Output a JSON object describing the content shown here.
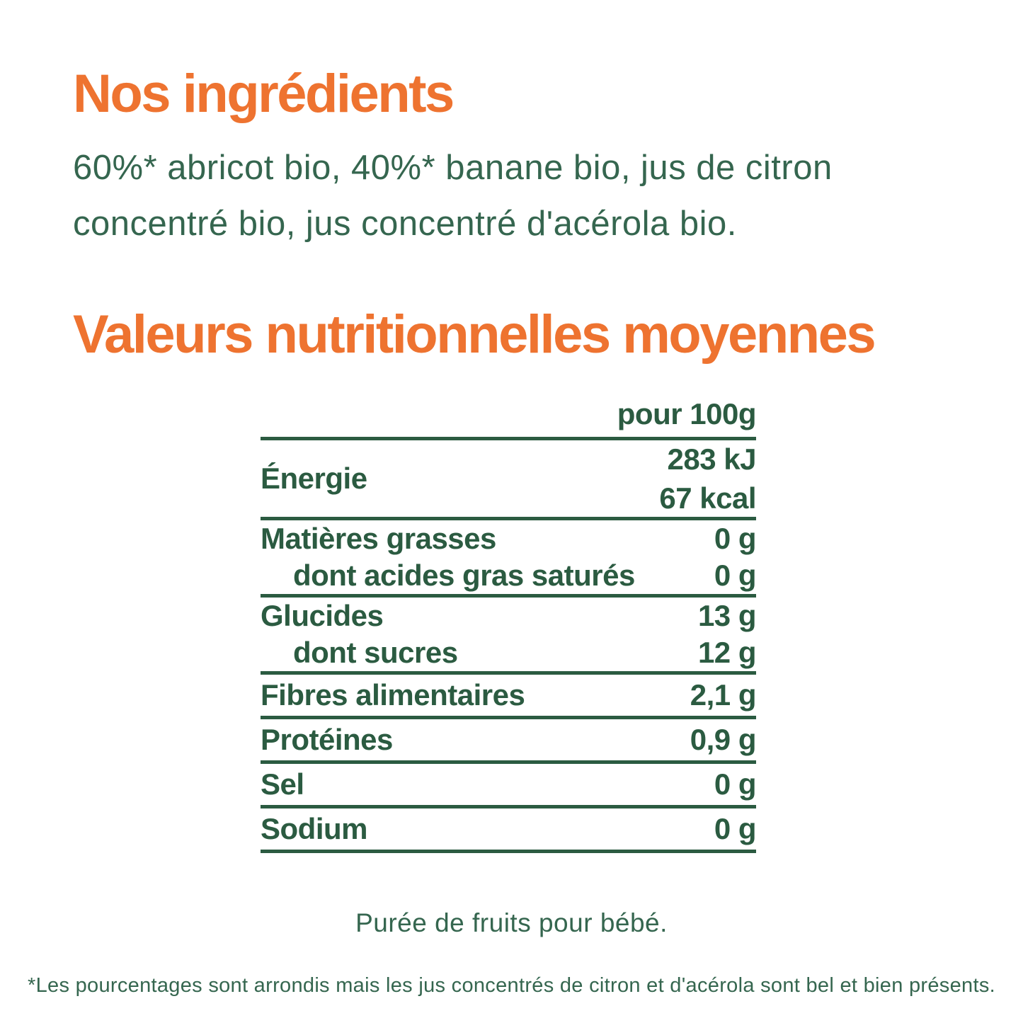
{
  "colors": {
    "accent_orange": "#ee7330",
    "table_green": "#2b5b41",
    "body_green": "#35664f",
    "background": "#ffffff"
  },
  "ingredients": {
    "title": "Nos ingrédients",
    "description": "60%* abricot bio, 40%* banane bio, jus de citron concentré bio, jus concentré d'acérola bio."
  },
  "nutrition": {
    "title": "Valeurs nutritionnelles moyennes",
    "column_header": "pour 100g",
    "rows": [
      {
        "label": "Énergie",
        "values": [
          "283 kJ",
          "67 kcal"
        ]
      },
      {
        "label": "Matières grasses",
        "values": [
          "0 g"
        ]
      },
      {
        "label": "dont acides gras saturés",
        "values": [
          "0 g"
        ],
        "indent": true
      },
      {
        "label": "Glucides",
        "values": [
          "13 g"
        ]
      },
      {
        "label": "dont sucres",
        "values": [
          "12 g"
        ],
        "indent": true
      },
      {
        "label": "Fibres alimentaires",
        "values": [
          "2,1 g"
        ]
      },
      {
        "label": "Protéines",
        "values": [
          "0,9 g"
        ]
      },
      {
        "label": "Sel",
        "values": [
          "0 g"
        ]
      },
      {
        "label": "Sodium",
        "values": [
          "0 g"
        ]
      }
    ]
  },
  "caption": "Purée de fruits pour bébé.",
  "footnote": "*Les pourcentages sont arrondis mais les jus concentrés de citron  et d'acérola sont bel et bien présents."
}
